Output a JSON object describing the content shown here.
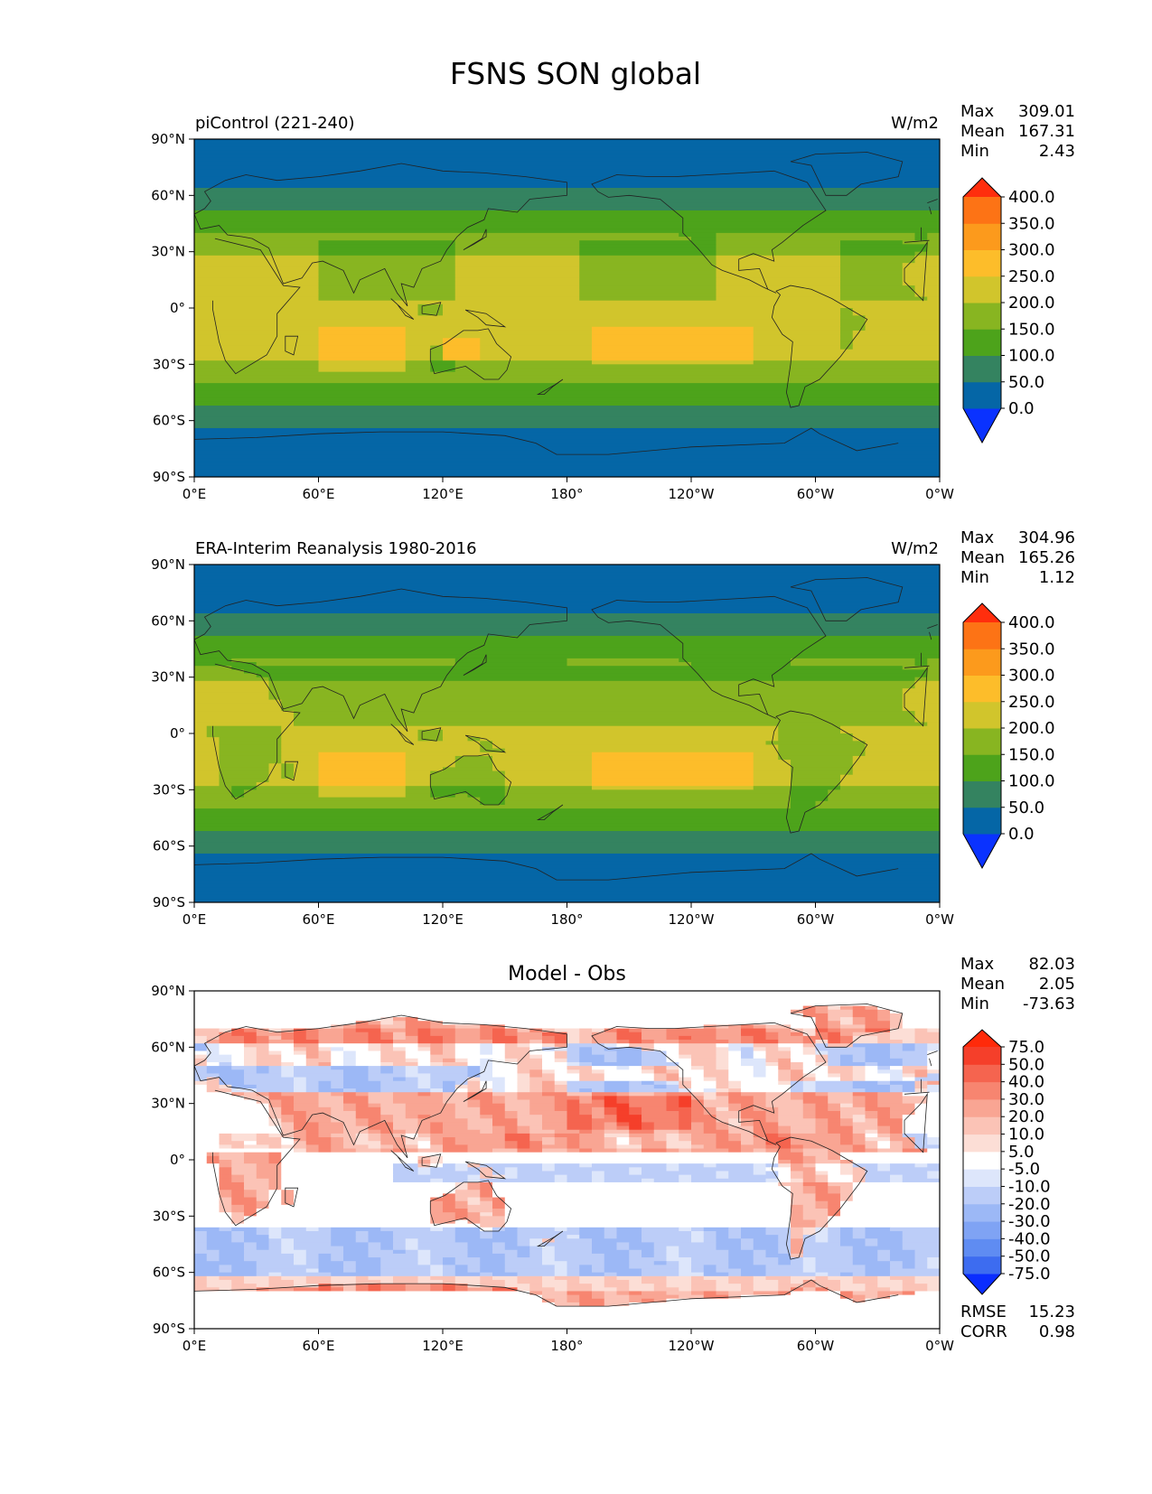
{
  "title": "FSNS SON global",
  "lon_ticks": [
    "0°E",
    "60°E",
    "120°E",
    "180°",
    "120°W",
    "60°W",
    "0°W"
  ],
  "lat_ticks": [
    "90°N",
    "60°N",
    "30°N",
    "0°",
    "30°S",
    "60°S",
    "90°S"
  ],
  "panels": [
    {
      "id": "model",
      "left_title": "piControl (221-240)",
      "center_title": "",
      "units": "W/m2",
      "stats": [
        [
          "Max",
          "309.01"
        ],
        [
          "Mean",
          "167.31"
        ],
        [
          "Min",
          "2.43"
        ]
      ],
      "colorbar": {
        "labels": [
          "400.0",
          "350.0",
          "300.0",
          "250.0",
          "200.0",
          "150.0",
          "100.0",
          "50.0",
          "0.0"
        ],
        "colors": [
          "#0a32ff",
          "#0566a6",
          "#348360",
          "#4da31b",
          "#88b521",
          "#d1c52c",
          "#fdbd2a",
          "#fc9a1c",
          "#fd7315",
          "#ff2e0d"
        ]
      },
      "footer_stats": []
    },
    {
      "id": "obs",
      "left_title": "ERA-Interim Reanalysis 1980-2016",
      "center_title": "",
      "units": "W/m2",
      "stats": [
        [
          "Max",
          "304.96"
        ],
        [
          "Mean",
          "165.26"
        ],
        [
          "Min",
          "1.12"
        ]
      ],
      "colorbar": {
        "labels": [
          "400.0",
          "350.0",
          "300.0",
          "250.0",
          "200.0",
          "150.0",
          "100.0",
          "50.0",
          "0.0"
        ],
        "colors": [
          "#0a32ff",
          "#0566a6",
          "#348360",
          "#4da31b",
          "#88b521",
          "#d1c52c",
          "#fdbd2a",
          "#fc9a1c",
          "#fd7315",
          "#ff2e0d"
        ]
      },
      "footer_stats": []
    },
    {
      "id": "diff",
      "left_title": "",
      "center_title": "Model - Obs",
      "units": "",
      "stats": [
        [
          "Max",
          "82.03"
        ],
        [
          "Mean",
          "2.05"
        ],
        [
          "Min",
          "-73.63"
        ]
      ],
      "colorbar": {
        "labels": [
          "75.0",
          "50.0",
          "40.0",
          "30.0",
          "20.0",
          "10.0",
          "5.0",
          "-5.0",
          "-10.0",
          "-20.0",
          "-30.0",
          "-40.0",
          "-50.0",
          "-75.0"
        ],
        "colors": [
          "#0a2dff",
          "#3d6cf0",
          "#5f8cf2",
          "#7fa3f4",
          "#9cb8f6",
          "#bccdf8",
          "#dde6fb",
          "#ffffff",
          "#fcded6",
          "#fbc3b6",
          "#f9a593",
          "#f78570",
          "#f5644f",
          "#f53f2a",
          "#ff2a0a"
        ]
      },
      "footer_stats": [
        [
          "RMSE",
          "15.23"
        ],
        [
          "CORR",
          "0.98"
        ]
      ]
    }
  ]
}
